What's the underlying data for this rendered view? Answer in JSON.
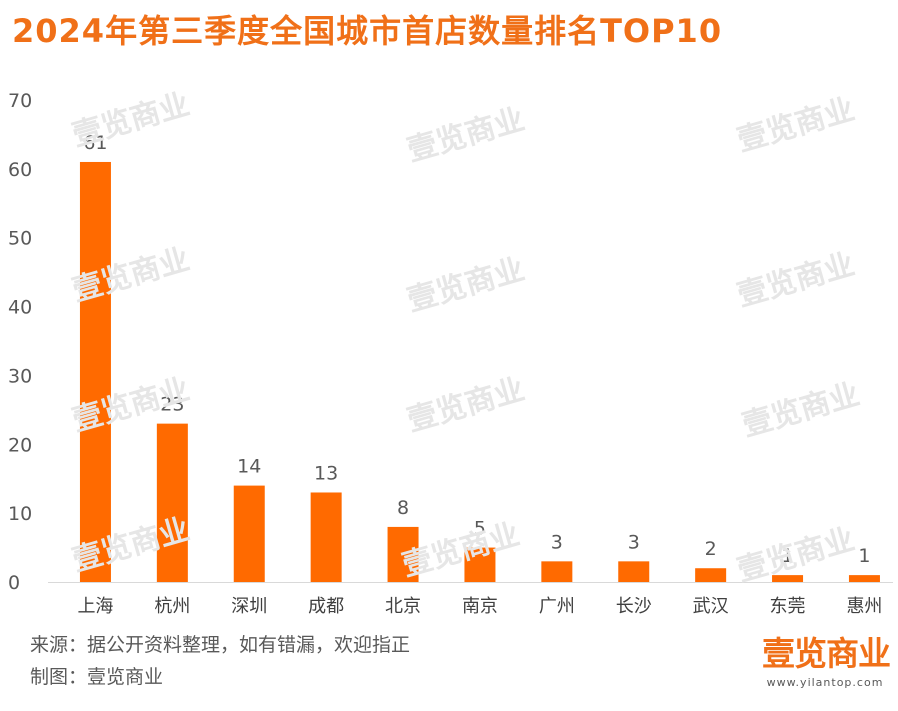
{
  "title": "2024年第三季度全国城市首店数量排名TOP10",
  "colors": {
    "accent": "#f07018",
    "bar": "#ff6a00",
    "axis_text": "#595959",
    "footer_text": "#595959",
    "watermark": "#e6e6e6"
  },
  "chart_data": {
    "type": "bar",
    "categories": [
      "上海",
      "杭州",
      "深圳",
      "成都",
      "北京",
      "南京",
      "广州",
      "长沙",
      "武汉",
      "东莞",
      "惠州"
    ],
    "values": [
      61,
      23,
      14,
      13,
      8,
      5,
      3,
      3,
      2,
      1,
      1
    ],
    "title": "2024年第三季度全国城市首店数量排名TOP10",
    "xlabel": "",
    "ylabel": "",
    "ylim": [
      0,
      70
    ],
    "yticks": [
      0,
      10,
      20,
      30,
      40,
      50,
      60,
      70
    ],
    "data_labels": true,
    "grid": false,
    "legend": "none"
  },
  "footer": {
    "source": "来源：据公开资料整理，如有错漏，欢迎指正",
    "credit": "制图：壹览商业"
  },
  "logo": {
    "text": "壹览商业",
    "url": "www.yilantop.com"
  },
  "watermark_text": "壹览商业"
}
